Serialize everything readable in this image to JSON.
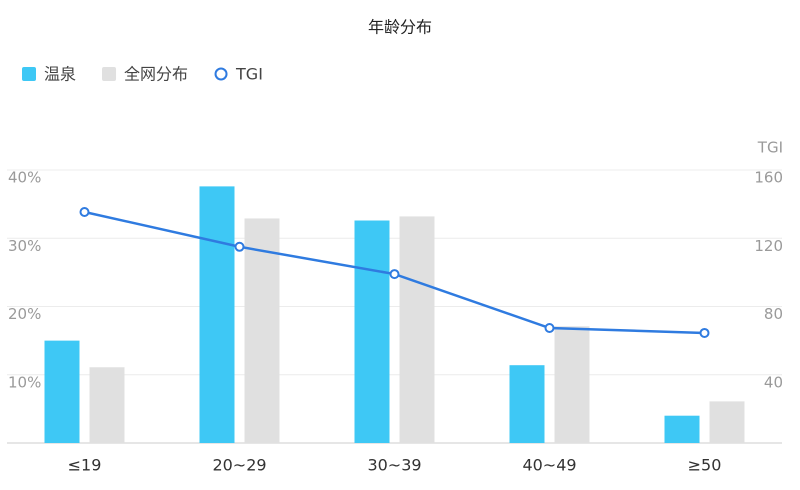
{
  "chart_data": {
    "type": "bar",
    "title": "年龄分布",
    "categories": [
      "≤19",
      "20~29",
      "30~39",
      "40~49",
      "≥50"
    ],
    "series": [
      {
        "name": "温泉",
        "type": "bar",
        "color": "#3ec8f5",
        "values": [
          15,
          37.6,
          32.6,
          11.4,
          4.0
        ]
      },
      {
        "name": "全网分布",
        "type": "bar",
        "color": "#e0e0e0",
        "values": [
          11.1,
          32.9,
          33.2,
          17.1,
          6.1
        ]
      },
      {
        "name": "TGI",
        "type": "line",
        "axis": "y2",
        "color": "#2f7be0",
        "values": [
          135.4,
          115,
          99,
          67.4,
          64.5
        ]
      }
    ],
    "ylim": [
      0,
      40
    ],
    "yticks": [
      {
        "value": 10,
        "label": "10%"
      },
      {
        "value": 20,
        "label": "20%"
      },
      {
        "value": 30,
        "label": "30%"
      },
      {
        "value": 40,
        "label": "40%"
      }
    ],
    "y2_label": "TGI",
    "y2lim": [
      0,
      160
    ],
    "y2ticks": [
      40,
      80,
      120,
      160
    ],
    "grid": true,
    "legend": "top-left"
  }
}
